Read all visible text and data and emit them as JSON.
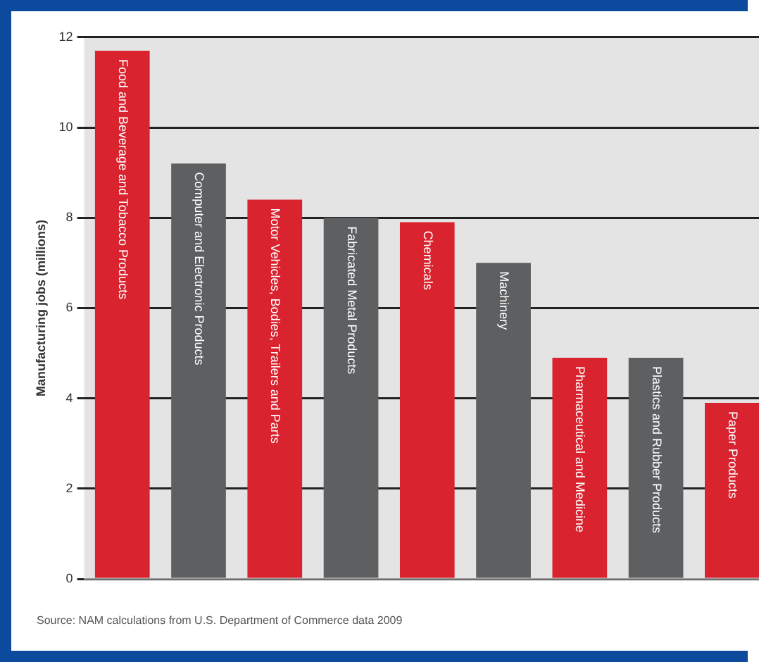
{
  "chart_data": {
    "type": "bar",
    "ylabel": "Manufacturing jobs (millions)",
    "categories": [
      "Food and Beverage and Tobacco Products",
      "Computer and Electronic Products",
      "Motor Vehicles, Bodies, Trailers and Parts",
      "Fabricated Metal Products",
      "Chemicals",
      "Machinery",
      "Pharmaceutical and Medicine",
      "Plastics and Rubber Products",
      "Paper Products"
    ],
    "values": [
      11.7,
      9.2,
      8.4,
      8.0,
      7.9,
      7.0,
      4.9,
      4.9,
      3.9
    ],
    "colors": [
      "#d9232f",
      "#5e5f61",
      "#d9232f",
      "#5e5f61",
      "#d9232f",
      "#5e5f61",
      "#d9232f",
      "#5e5f61",
      "#d9232f"
    ],
    "ylim": [
      0,
      12
    ],
    "yticks": [
      0,
      2,
      4,
      6,
      8,
      10,
      12
    ],
    "grid": "y",
    "legend": false,
    "annotations": [
      "Source: NAM calculations from U.S. Department of Commerce data 2009"
    ]
  }
}
